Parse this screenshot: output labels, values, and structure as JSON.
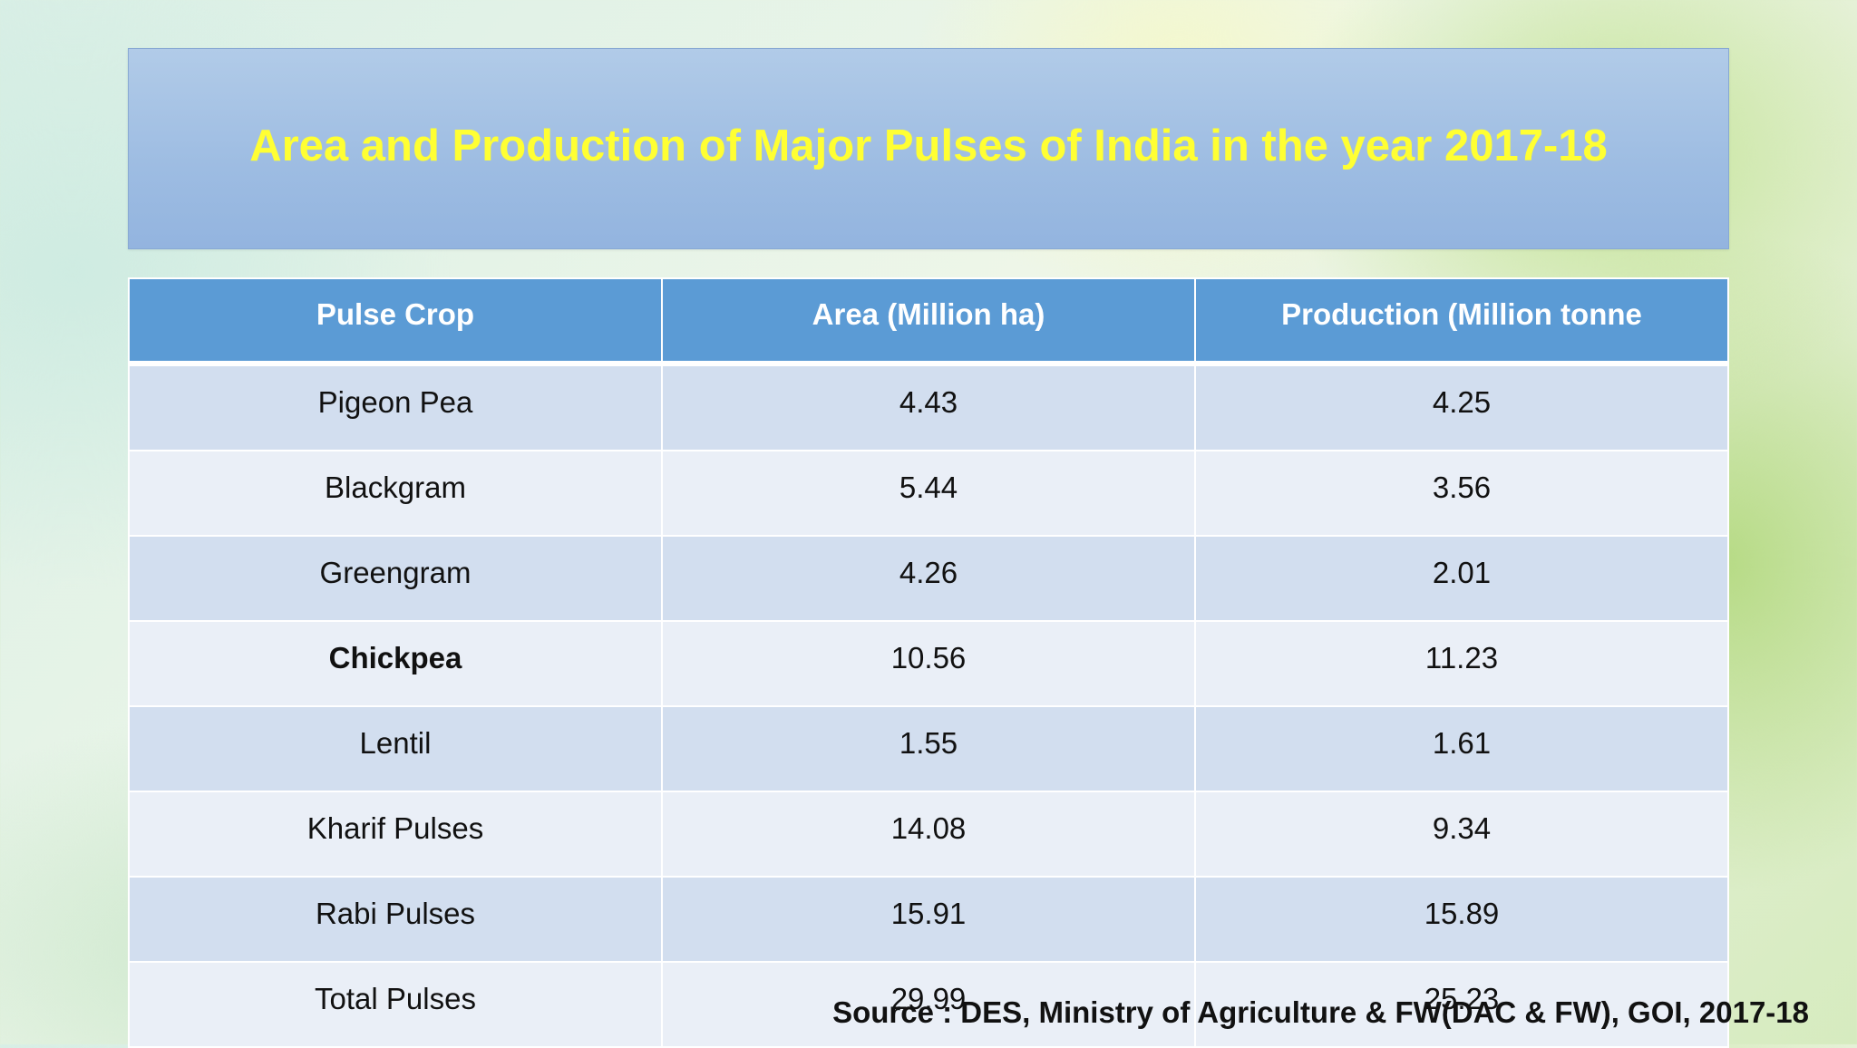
{
  "title": "Area and Production of Major Pulses of India in the year 2017-18",
  "table": {
    "headers": [
      "Pulse Crop",
      "Area (Million ha)",
      "Production (Million tonne"
    ],
    "rows": [
      [
        "Pigeon Pea",
        "4.43",
        "4.25"
      ],
      [
        "Blackgram",
        "5.44",
        "3.56"
      ],
      [
        "Greengram",
        "4.26",
        "2.01"
      ],
      [
        "Chickpea",
        "10.56",
        "11.23"
      ],
      [
        "Lentil",
        "1.55",
        "1.61"
      ],
      [
        "Kharif Pulses",
        "14.08",
        "9.34"
      ],
      [
        "Rabi Pulses",
        "15.91",
        "15.89"
      ],
      [
        "Total Pulses",
        "29.99",
        "25.23"
      ]
    ]
  },
  "source": "Source : DES, Ministry of Agriculture & FW(DAC & FW), GOI, 2017-18",
  "colors": {
    "title_text": "#ffff33",
    "title_box": "#9dbce2",
    "header_bg": "#5b9bd5",
    "row_odd": "#d2deef",
    "row_even": "#eaeff7"
  }
}
